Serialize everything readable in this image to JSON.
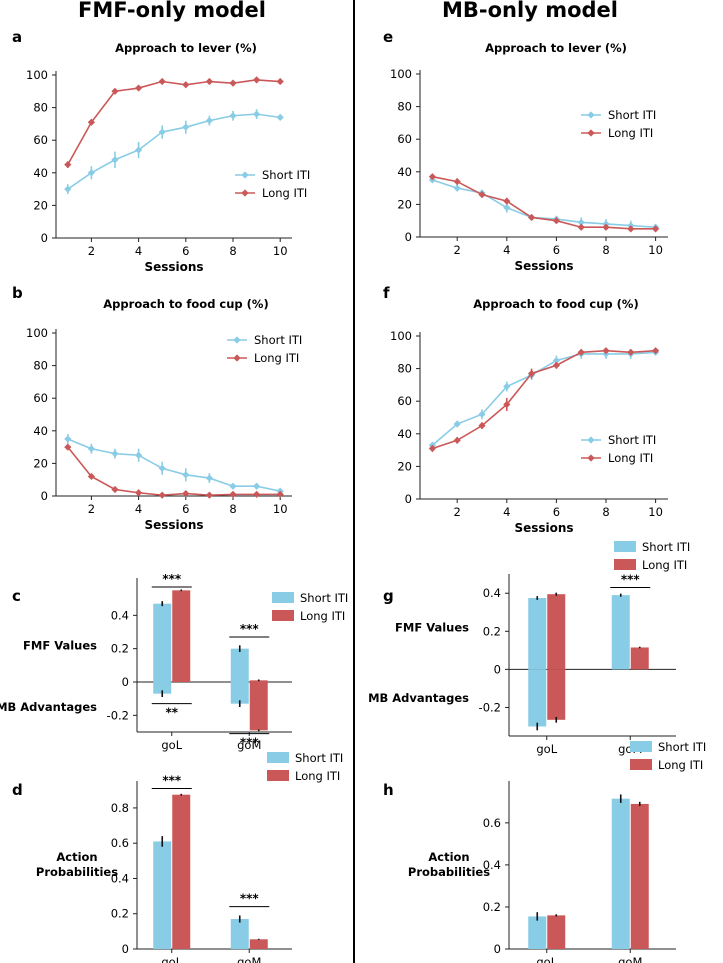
{
  "titles": {
    "left": "FMF-only model",
    "right": "MB-only model"
  },
  "colors": {
    "short": "#89cce6",
    "long": "#cb5858",
    "axis": "#222222",
    "err": "#111111"
  },
  "chart_data": [
    {
      "id": "a",
      "panel": "a",
      "type": "line",
      "title": "Approach to lever (%)",
      "xlabel": "Sessions",
      "ylabel": "",
      "x": [
        1,
        2,
        3,
        4,
        5,
        6,
        7,
        8,
        9,
        10
      ],
      "xticks": [
        2,
        4,
        6,
        8,
        10
      ],
      "xlim": [
        0.5,
        10.5
      ],
      "ylim": [
        0,
        100
      ],
      "yticks": [
        0,
        20,
        40,
        60,
        80,
        100
      ],
      "legend": "center-right",
      "series": [
        {
          "name": "Short ITI",
          "values": [
            30,
            40,
            48,
            54,
            65,
            68,
            72,
            75,
            76,
            74
          ],
          "err": [
            3,
            4,
            5,
            5,
            4,
            4,
            3,
            3,
            3,
            1
          ]
        },
        {
          "name": "Long ITI",
          "values": [
            45,
            71,
            90,
            92,
            96,
            94,
            96,
            95,
            97,
            96
          ],
          "err": [
            2,
            1,
            1,
            1,
            1,
            1,
            1,
            1,
            1,
            1
          ]
        }
      ]
    },
    {
      "id": "b",
      "panel": "b",
      "type": "line",
      "title": "Approach to food cup (%)",
      "xlabel": "Sessions",
      "ylabel": "",
      "x": [
        1,
        2,
        3,
        4,
        5,
        6,
        7,
        8,
        9,
        10
      ],
      "xticks": [
        2,
        4,
        6,
        8,
        10
      ],
      "xlim": [
        0.5,
        10.5
      ],
      "ylim": [
        0,
        100
      ],
      "yticks": [
        0,
        20,
        40,
        60,
        80,
        100
      ],
      "legend": "top-right",
      "series": [
        {
          "name": "Short ITI",
          "values": [
            35,
            29,
            26,
            25,
            17,
            13,
            11,
            6,
            6,
            3
          ],
          "err": [
            3,
            3,
            3,
            4,
            4,
            4,
            3,
            1,
            1,
            1
          ]
        },
        {
          "name": "Long ITI",
          "values": [
            30,
            12,
            4,
            2,
            0.5,
            1.5,
            0.5,
            1,
            1,
            1
          ],
          "err": [
            1,
            1,
            1,
            1,
            0.5,
            1,
            0.5,
            1,
            1,
            1
          ]
        }
      ]
    },
    {
      "id": "e",
      "panel": "e",
      "type": "line",
      "title": "Approach to lever (%)",
      "xlabel": "Sessions",
      "ylabel": "",
      "x": [
        1,
        2,
        3,
        4,
        5,
        6,
        7,
        8,
        9,
        10
      ],
      "xticks": [
        2,
        4,
        6,
        8,
        10
      ],
      "xlim": [
        0.5,
        10.5
      ],
      "ylim": [
        0,
        100
      ],
      "yticks": [
        0,
        20,
        40,
        60,
        80,
        100
      ],
      "legend": "top-right",
      "series": [
        {
          "name": "Short ITI",
          "values": [
            35,
            30,
            27,
            18,
            12,
            11,
            9,
            8,
            7,
            6
          ],
          "err": [
            1,
            2,
            2,
            3,
            1,
            2,
            3,
            3,
            3,
            2
          ]
        },
        {
          "name": "Long ITI",
          "values": [
            37,
            34,
            26,
            22,
            12,
            10,
            6,
            6,
            5,
            5
          ],
          "err": [
            1,
            2,
            1,
            2,
            1,
            1,
            1,
            1,
            1,
            1
          ]
        }
      ]
    },
    {
      "id": "f",
      "panel": "f",
      "type": "line",
      "title": "Approach to food cup (%)",
      "xlabel": "Sessions",
      "ylabel": "",
      "x": [
        1,
        2,
        3,
        4,
        5,
        6,
        7,
        8,
        9,
        10
      ],
      "xticks": [
        2,
        4,
        6,
        8,
        10
      ],
      "xlim": [
        0.5,
        10.5
      ],
      "ylim": [
        0,
        100
      ],
      "yticks": [
        0,
        20,
        40,
        60,
        80,
        100
      ],
      "legend": "center-right",
      "series": [
        {
          "name": "Short ITI",
          "values": [
            33,
            46,
            52,
            69,
            76,
            85,
            89,
            89,
            89,
            90
          ],
          "err": [
            2,
            2,
            3,
            3,
            3,
            3,
            3,
            3,
            3,
            2
          ]
        },
        {
          "name": "Long ITI",
          "values": [
            31,
            36,
            45,
            58,
            77,
            82,
            90,
            91,
            90,
            91
          ],
          "err": [
            2,
            2,
            2,
            4,
            3,
            2,
            1,
            1,
            1,
            1
          ]
        }
      ]
    },
    {
      "id": "c",
      "panel": "c",
      "type": "bar",
      "title": "",
      "xlabel": "",
      "ylabel_top": "FMF Values",
      "ylabel_bottom": "MB Advantages",
      "categories": [
        "goL",
        "goM"
      ],
      "ylim": [
        -0.3,
        0.6
      ],
      "yticks": [
        -0.2,
        0,
        0.2,
        0.4
      ],
      "legend": "top-right",
      "series": [
        {
          "name": "Short ITI",
          "values": [
            0.47,
            0.2
          ],
          "err": [
            0.015,
            0.02
          ],
          "neg_values": [
            -0.07,
            -0.13
          ],
          "neg_err": [
            0.02,
            0.02
          ]
        },
        {
          "name": "Long ITI",
          "values": [
            0.55,
            0.01
          ],
          "err": [
            0.005,
            0.005
          ],
          "neg_values": [
            0,
            -0.29
          ],
          "neg_err": [
            0,
            0.005
          ]
        }
      ],
      "annotations": [
        {
          "text": "***",
          "category": 0,
          "y": 0.57,
          "side": "above"
        },
        {
          "text": "**",
          "category": 0,
          "y": -0.13,
          "side": "below"
        },
        {
          "text": "***",
          "category": 1,
          "y": 0.27,
          "side": "above"
        },
        {
          "text": "***",
          "category": 1,
          "y": -0.31,
          "side": "below"
        }
      ]
    },
    {
      "id": "g",
      "panel": "g",
      "type": "bar",
      "title": "",
      "xlabel": "",
      "ylabel_top": "FMF Values",
      "ylabel_bottom": "MB Advantages",
      "categories": [
        "goL",
        "goM"
      ],
      "ylim": [
        -0.35,
        0.48
      ],
      "yticks": [
        -0.2,
        0,
        0.2,
        0.4
      ],
      "legend": "top-right",
      "series": [
        {
          "name": "Short ITI",
          "values": [
            0.375,
            0.39
          ],
          "err": [
            0.01,
            0.008
          ],
          "neg_values": [
            -0.3,
            0
          ],
          "neg_err": [
            0.02,
            0
          ]
        },
        {
          "name": "Long ITI",
          "values": [
            0.395,
            0.115
          ],
          "err": [
            0.008,
            0.004
          ],
          "neg_values": [
            -0.265,
            0
          ],
          "neg_err": [
            0.015,
            0
          ]
        }
      ],
      "annotations": [
        {
          "text": "***",
          "category": 1,
          "y": 0.43,
          "side": "above"
        }
      ]
    },
    {
      "id": "d",
      "panel": "d",
      "type": "bar",
      "title": "",
      "xlabel": "",
      "ylabel": "Action\nProbabilities",
      "categories": [
        "goL",
        "goM"
      ],
      "ylim": [
        0,
        0.93
      ],
      "yticks": [
        0,
        0.2,
        0.4,
        0.6,
        0.8
      ],
      "legend": "top-right",
      "series": [
        {
          "name": "Short ITI",
          "values": [
            0.61,
            0.17
          ],
          "err": [
            0.03,
            0.02
          ]
        },
        {
          "name": "Long ITI",
          "values": [
            0.875,
            0.055
          ],
          "err": [
            0.005,
            0.003
          ]
        }
      ],
      "annotations": [
        {
          "text": "***",
          "category": 0,
          "y": 0.91,
          "side": "above"
        },
        {
          "text": "***",
          "category": 1,
          "y": 0.24,
          "side": "above"
        }
      ]
    },
    {
      "id": "h",
      "panel": "h",
      "type": "bar",
      "title": "",
      "xlabel": "",
      "ylabel": "Action\nProbabilities",
      "categories": [
        "goL",
        "goM"
      ],
      "ylim": [
        0,
        0.78
      ],
      "yticks": [
        0,
        0.2,
        0.4,
        0.6
      ],
      "legend": "top-right",
      "series": [
        {
          "name": "Short ITI",
          "values": [
            0.155,
            0.715
          ],
          "err": [
            0.02,
            0.02
          ]
        },
        {
          "name": "Long ITI",
          "values": [
            0.16,
            0.69
          ],
          "err": [
            0.005,
            0.01
          ]
        }
      ],
      "annotations": []
    }
  ]
}
